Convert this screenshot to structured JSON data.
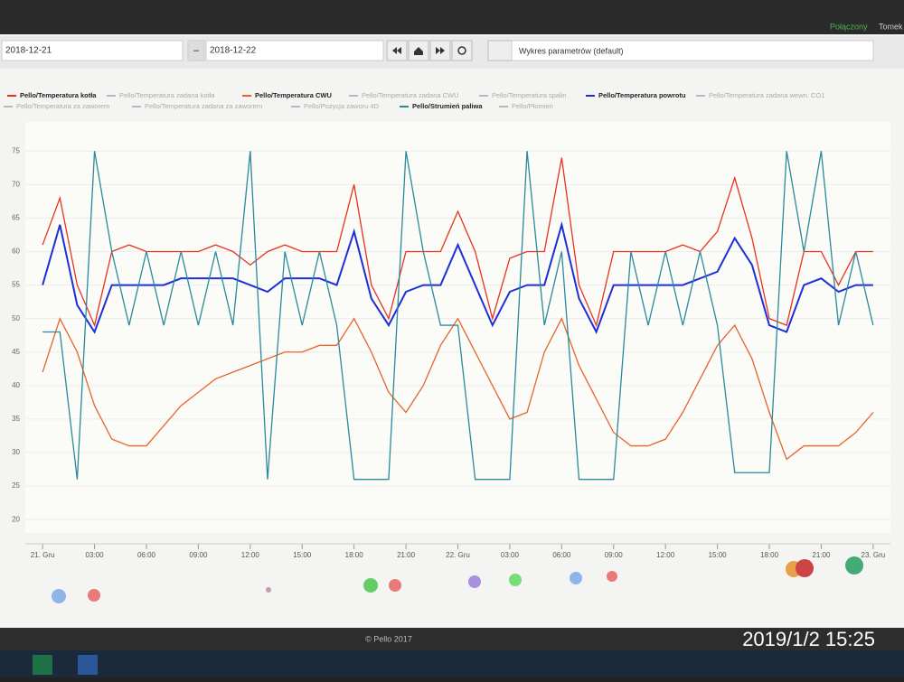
{
  "topbar": {
    "status": "Połączony",
    "user": "Tomek"
  },
  "toolbar": {
    "date_from": "2018-12-21",
    "separator": "–",
    "date_to": "2018-12-22",
    "chart_select": "Wykres parametrów (default)"
  },
  "chart_data": {
    "type": "line",
    "x": [
      0,
      1,
      2,
      3,
      4,
      5,
      6,
      7,
      8,
      9,
      10,
      11,
      12,
      13,
      14,
      15,
      16,
      17,
      18,
      19,
      20,
      21,
      22,
      23,
      24,
      25,
      26,
      27,
      28,
      29,
      30,
      31,
      32,
      33,
      34,
      35,
      36,
      37,
      38,
      39,
      40,
      41,
      42,
      43,
      44,
      45,
      46,
      47,
      48
    ],
    "series": [
      {
        "name": "Pello/Temperatura kotła",
        "color": "#e8321e",
        "values": [
          61,
          68,
          55,
          49,
          60,
          61,
          60,
          60,
          60,
          60,
          61,
          60,
          58,
          60,
          61,
          60,
          60,
          60,
          70,
          55,
          50,
          60,
          60,
          60,
          66,
          60,
          50,
          59,
          60,
          60,
          74,
          55,
          49,
          60,
          60,
          60,
          60,
          61,
          60,
          63,
          71,
          62,
          50,
          49,
          60,
          60,
          55,
          60,
          60
        ]
      },
      {
        "name": "Pello/Temperatura CWU",
        "color": "#e8642a",
        "values": [
          42,
          50,
          45,
          37,
          32,
          31,
          31,
          34,
          37,
          39,
          41,
          42,
          43,
          44,
          45,
          45,
          46,
          46,
          50,
          45,
          39,
          36,
          40,
          46,
          50,
          45,
          40,
          35,
          36,
          45,
          50,
          43,
          38,
          33,
          31,
          31,
          32,
          36,
          41,
          46,
          49,
          44,
          36,
          29,
          31,
          31,
          31,
          33,
          36
        ]
      },
      {
        "name": "Pello/Temperatura powrotu",
        "color": "#1f2fd6",
        "values": [
          55,
          64,
          52,
          48,
          55,
          55,
          55,
          55,
          56,
          56,
          56,
          56,
          55,
          54,
          56,
          56,
          56,
          55,
          63,
          53,
          49,
          54,
          55,
          55,
          61,
          55,
          49,
          54,
          55,
          55,
          64,
          53,
          48,
          55,
          55,
          55,
          55,
          55,
          56,
          57,
          62,
          58,
          49,
          48,
          55,
          56,
          54,
          55,
          55
        ]
      },
      {
        "name": "Pello/Strumień paliwa",
        "color": "#2a8a9c",
        "values": [
          48,
          48,
          26,
          75,
          60,
          49,
          60,
          49,
          60,
          49,
          60,
          49,
          75,
          26,
          60,
          49,
          60,
          49,
          26,
          26,
          26,
          75,
          60,
          49,
          49,
          26,
          26,
          26,
          75,
          49,
          60,
          26,
          26,
          26,
          60,
          49,
          60,
          49,
          60,
          49,
          27,
          27,
          27,
          75,
          60,
          75,
          49,
          60,
          49
        ]
      }
    ],
    "hidden_series": [
      {
        "name": "Pello/Temperatura zadana kotła",
        "color": "#b8b8b8"
      },
      {
        "name": "Pello/Temperatura zadana CWU",
        "color": "#b8b8b8"
      },
      {
        "name": "Pello/Temperatura spalin",
        "color": "#b8b8b8"
      },
      {
        "name": "Pello/Temperatura zadana wewn. CO1",
        "color": "#b8b8b8"
      },
      {
        "name": "Pello/Temperatura za zaworem",
        "color": "#b8b8b8"
      },
      {
        "name": "Pello/Temperatura zadana za zaworem",
        "color": "#b8b8b8"
      },
      {
        "name": "Pello/Pozycja zaworu 4D",
        "color": "#b8b8b8"
      },
      {
        "name": "Pello/Płomień",
        "color": "#b8b8b8"
      }
    ],
    "xlim": [
      -1,
      49
    ],
    "xticks": [
      {
        "value": 0,
        "label": "21. Gru"
      },
      {
        "value": 3,
        "label": "03:00"
      },
      {
        "value": 6,
        "label": "06:00"
      },
      {
        "value": 9,
        "label": "09:00"
      },
      {
        "value": 12,
        "label": "12:00"
      },
      {
        "value": 15,
        "label": "15:00"
      },
      {
        "value": 18,
        "label": "18:00"
      },
      {
        "value": 21,
        "label": "21:00"
      },
      {
        "value": 24,
        "label": "22. Gru"
      },
      {
        "value": 27,
        "label": "03:00"
      },
      {
        "value": 30,
        "label": "06:00"
      },
      {
        "value": 33,
        "label": "09:00"
      },
      {
        "value": 36,
        "label": "12:00"
      },
      {
        "value": 39,
        "label": "15:00"
      },
      {
        "value": 42,
        "label": "18:00"
      },
      {
        "value": 45,
        "label": "21:00"
      },
      {
        "value": 48,
        "label": "23. Gru"
      }
    ],
    "ylim": [
      18,
      78
    ],
    "yticks": [
      20,
      25,
      30,
      35,
      40,
      45,
      50,
      55,
      60,
      65,
      70,
      75
    ],
    "grid": true
  },
  "footer": {
    "copyright": "© Pello 2017"
  },
  "photo_timestamp": "2019/1/2  15:25"
}
